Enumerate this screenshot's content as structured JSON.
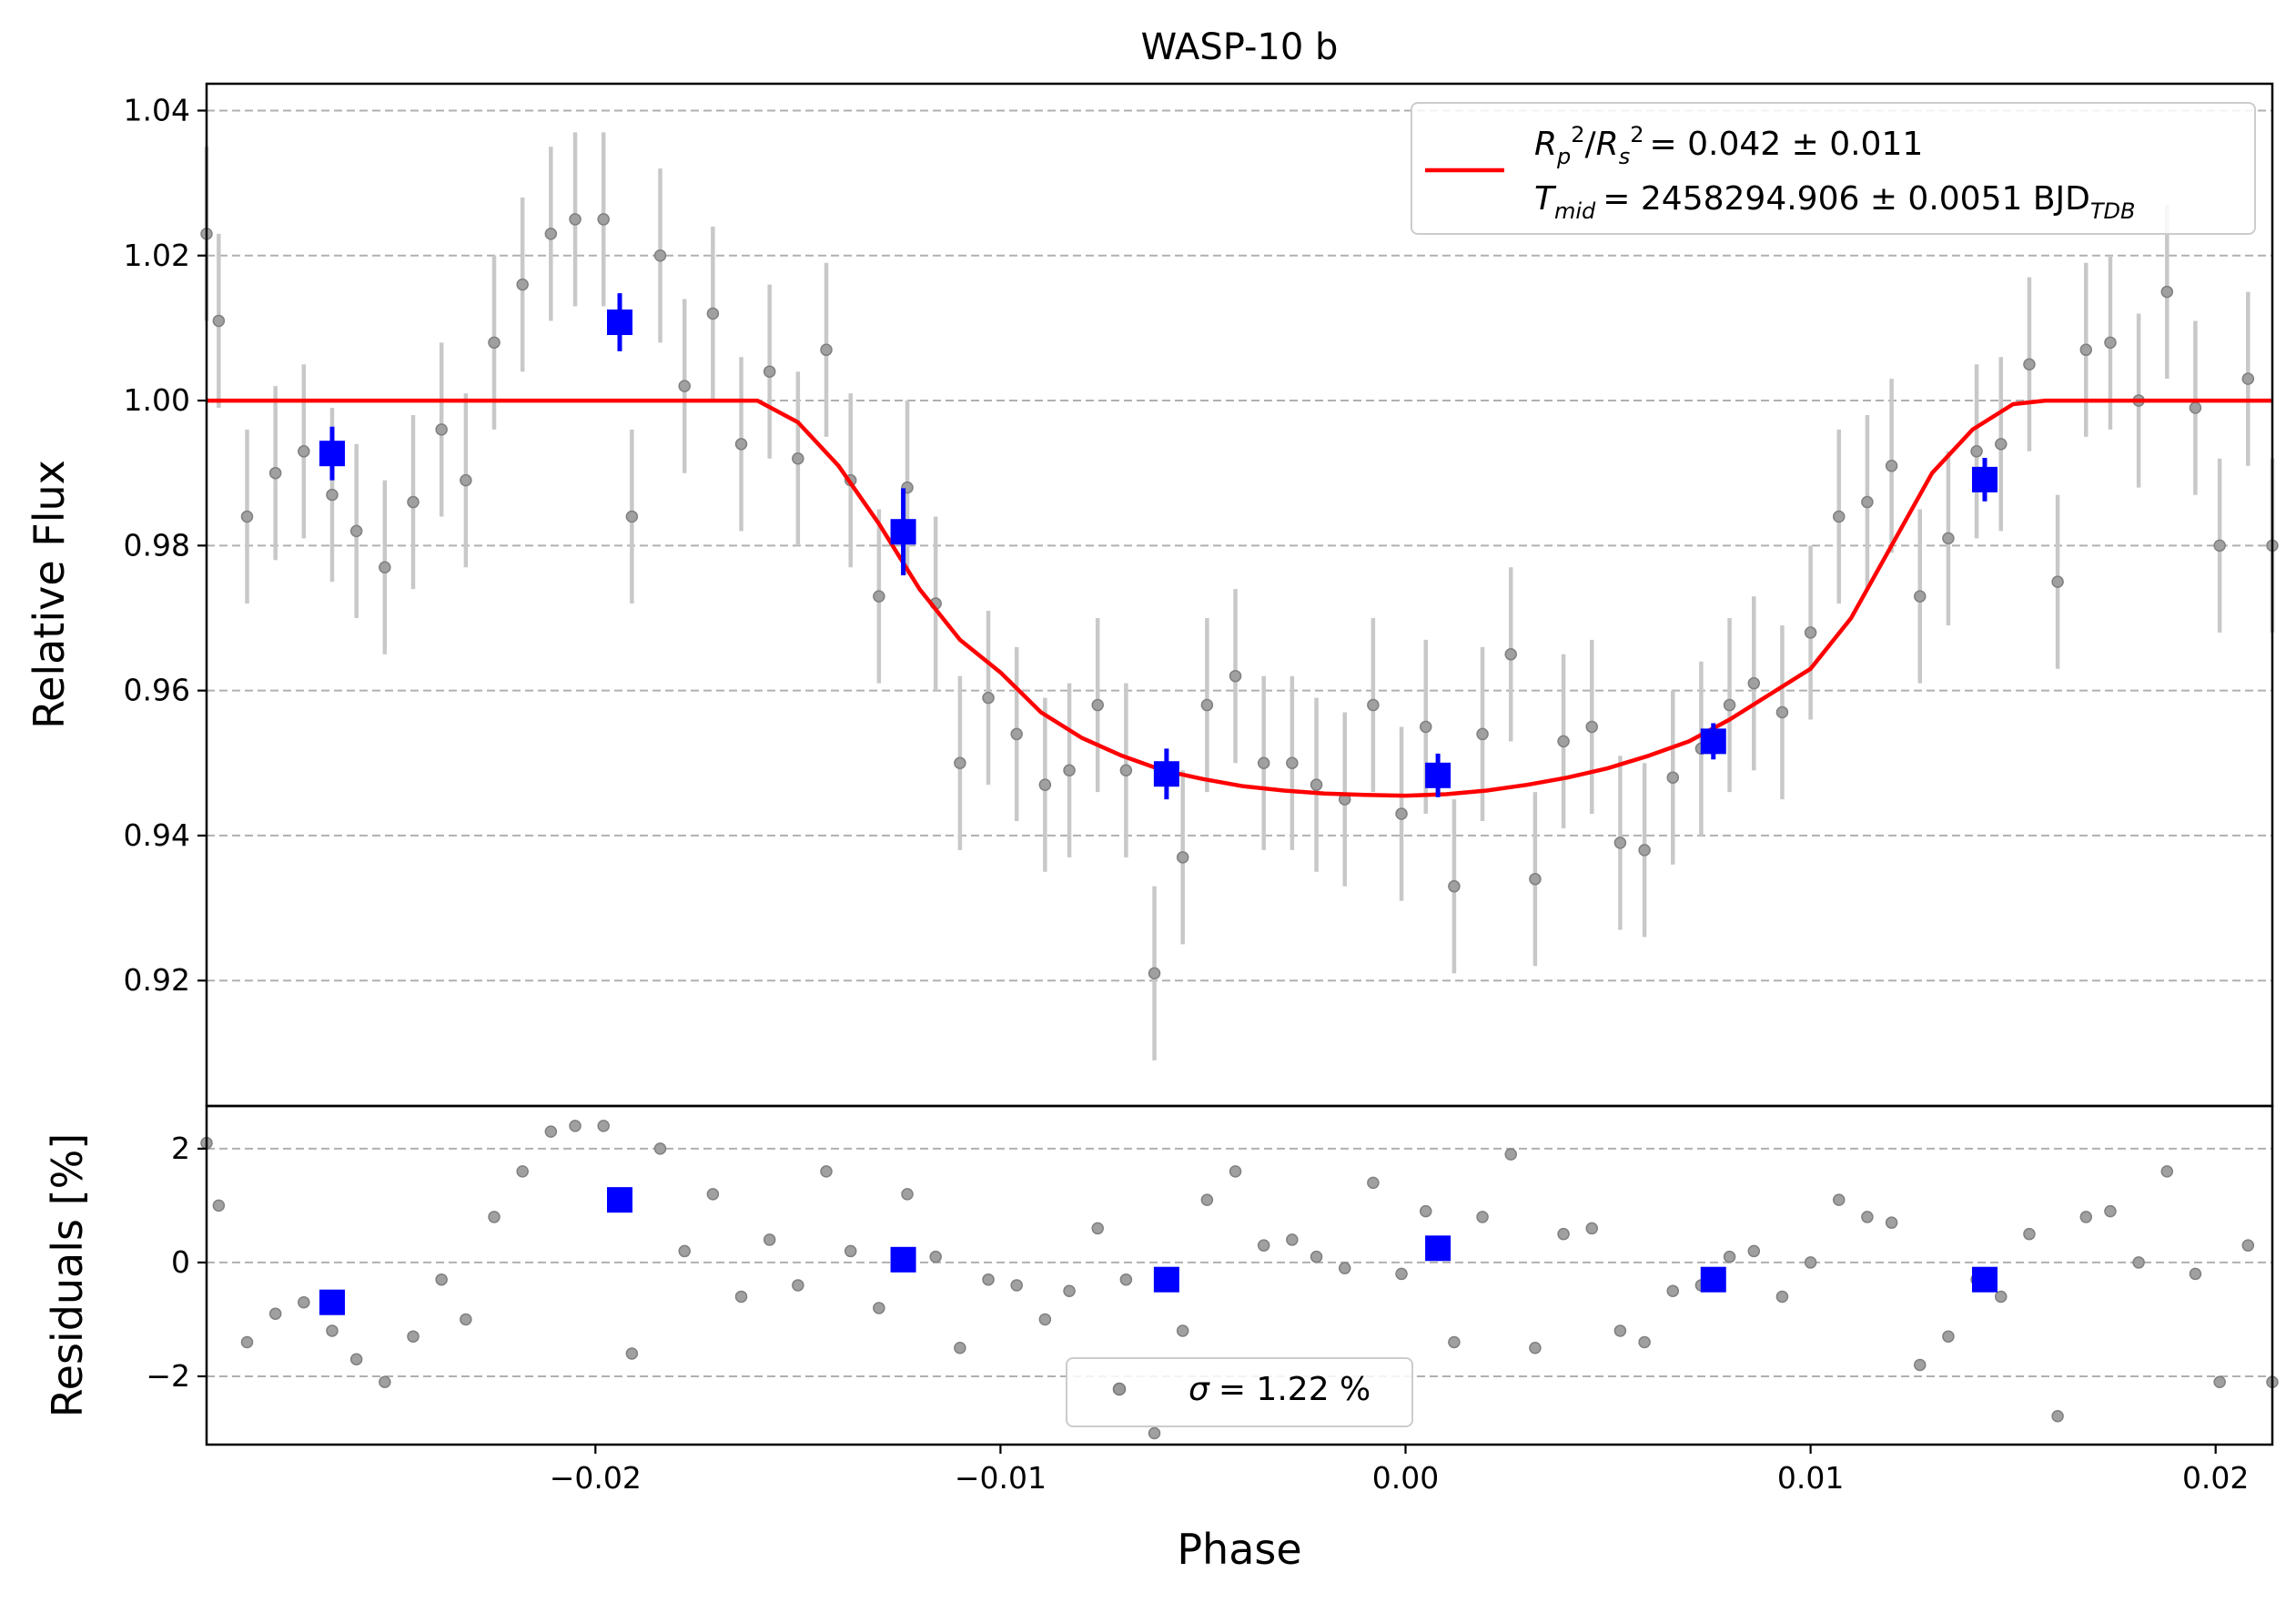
{
  "chart_data": [
    {
      "id": "flux",
      "type": "scatter",
      "title": "WASP-10 b",
      "xlabel": "",
      "ylabel": "Relative Flux",
      "xlim": [
        -0.0296,
        0.0214
      ],
      "ylim": [
        0.9027,
        1.0437
      ],
      "yticks": [
        0.92,
        0.94,
        0.96,
        0.98,
        1.0,
        1.02,
        1.04
      ],
      "ytick_labels": [
        "0.92",
        "0.94",
        "0.96",
        "0.98",
        "1.00",
        "1.02",
        "1.04"
      ],
      "grid": "horizontal-dashed",
      "legend": {
        "position": "top-right",
        "entries": [
          {
            "label_math": "Rp²/Rs²",
            "text": "= 0.042 ± 0.011"
          },
          {
            "label_math": "Tmid",
            "text": "= 2458294.906 ± 0.0051 BJD",
            "subscript": "TDB"
          }
        ]
      },
      "series": [
        {
          "kind": "points",
          "color": "#999999",
          "x": [
            -0.0296,
            -0.0293,
            -0.0286,
            -0.0279,
            -0.0272,
            -0.0265,
            -0.0259,
            -0.0252,
            -0.0245,
            -0.0238,
            -0.0232,
            -0.0225,
            -0.0218,
            -0.0211,
            -0.0205,
            -0.0198,
            -0.0191,
            -0.0184,
            -0.0178,
            -0.0171,
            -0.0164,
            -0.0157,
            -0.015,
            -0.0143,
            -0.0137,
            -0.013,
            -0.0123,
            -0.0116,
            -0.011,
            -0.0103,
            -0.0096,
            -0.0089,
            -0.0083,
            -0.0076,
            -0.0069,
            -0.0062,
            -0.0055,
            -0.0049,
            -0.0042,
            -0.0035,
            -0.0028,
            -0.0022,
            -0.0015,
            -0.0008,
            -0.0001,
            0.0005,
            0.0012,
            0.0019,
            0.0026,
            0.0032,
            0.0039,
            0.0046,
            0.0053,
            0.0059,
            0.0066,
            0.0073,
            0.008,
            0.0086,
            0.0093,
            0.01,
            0.0107,
            0.0114,
            0.012,
            0.0127,
            0.0134,
            0.0141,
            0.0147,
            0.0154,
            0.0161,
            0.0168,
            0.0174,
            0.0181,
            0.0188,
            0.0195,
            0.0201,
            0.0208,
            0.0214
          ],
          "y": [
            1.023,
            1.011,
            0.984,
            0.99,
            0.993,
            0.987,
            0.982,
            0.977,
            0.986,
            0.996,
            0.989,
            1.008,
            1.016,
            1.023,
            1.025,
            1.025,
            0.984,
            1.02,
            1.002,
            1.012,
            0.994,
            1.004,
            0.992,
            1.007,
            0.989,
            0.973,
            0.988,
            0.972,
            0.95,
            0.959,
            0.954,
            0.947,
            0.949,
            0.958,
            0.949,
            0.921,
            0.937,
            0.958,
            0.962,
            0.95,
            0.95,
            0.947,
            0.945,
            0.958,
            0.943,
            0.955,
            0.933,
            0.954,
            0.965,
            0.934,
            0.953,
            0.955,
            0.939,
            0.938,
            0.948,
            0.952,
            0.958,
            0.961,
            0.957,
            0.968,
            0.984,
            0.986,
            0.991,
            0.973,
            0.981,
            0.993,
            0.994,
            1.005,
            0.975,
            1.007,
            1.008,
            1.0,
            1.015,
            0.999,
            0.98,
            1.003,
            0.98
          ],
          "yerr": 0.012
        },
        {
          "kind": "binned",
          "color": "#0000ff",
          "x": [
            -0.0265,
            -0.0194,
            -0.0124,
            -0.0059,
            0.0008,
            0.0076,
            0.0143
          ],
          "y": [
            0.9927,
            1.0108,
            0.9819,
            0.9485,
            0.9483,
            0.953,
            0.9891
          ],
          "yerr": [
            0.0037,
            0.004,
            0.006,
            0.0035,
            0.003,
            0.0025,
            0.003
          ]
        },
        {
          "kind": "model",
          "color": "#ff0000",
          "x": [
            -0.0296,
            -0.016,
            -0.015,
            -0.014,
            -0.013,
            -0.012,
            -0.011,
            -0.01,
            -0.009,
            -0.008,
            -0.007,
            -0.006,
            -0.005,
            -0.004,
            -0.003,
            -0.002,
            -0.001,
            0.0,
            0.001,
            0.002,
            0.003,
            0.004,
            0.005,
            0.006,
            0.007,
            0.008,
            0.009,
            0.01,
            0.011,
            0.012,
            0.013,
            0.014,
            0.015,
            0.0158,
            0.0214
          ],
          "y": [
            1.0,
            1.0,
            0.997,
            0.991,
            0.983,
            0.974,
            0.967,
            0.9625,
            0.957,
            0.9535,
            0.951,
            0.949,
            0.9478,
            0.9468,
            0.9462,
            0.9458,
            0.9456,
            0.9455,
            0.9457,
            0.9462,
            0.947,
            0.948,
            0.9493,
            0.951,
            0.953,
            0.956,
            0.9595,
            0.963,
            0.97,
            0.98,
            0.99,
            0.996,
            0.9995,
            1.0,
            1.0
          ]
        }
      ]
    },
    {
      "id": "residuals",
      "type": "scatter",
      "title": "",
      "xlabel": "Phase",
      "ylabel": "Residuals [%]",
      "xlim": [
        -0.0296,
        0.0214
      ],
      "ylim": [
        -3.2,
        2.75
      ],
      "xticks": [
        -0.02,
        -0.01,
        0.0,
        0.01,
        0.02
      ],
      "xtick_labels": [
        "−0.02",
        "−0.01",
        "0.00",
        "0.01",
        "0.02"
      ],
      "yticks": [
        -2,
        0,
        2
      ],
      "ytick_labels": [
        "−2",
        "0",
        "2"
      ],
      "grid": "horizontal-dashed",
      "legend": {
        "position": "bottom-center",
        "entries": [
          {
            "label_math": "σ",
            "text": "= 1.22 %"
          }
        ]
      },
      "series": [
        {
          "kind": "points",
          "color": "#999999",
          "x": [
            -0.0296,
            -0.0293,
            -0.0286,
            -0.0279,
            -0.0272,
            -0.0265,
            -0.0259,
            -0.0252,
            -0.0245,
            -0.0238,
            -0.0232,
            -0.0225,
            -0.0218,
            -0.0211,
            -0.0205,
            -0.0198,
            -0.0191,
            -0.0184,
            -0.0178,
            -0.0171,
            -0.0164,
            -0.0157,
            -0.015,
            -0.0143,
            -0.0137,
            -0.013,
            -0.0123,
            -0.0116,
            -0.011,
            -0.0103,
            -0.0096,
            -0.0089,
            -0.0083,
            -0.0076,
            -0.0069,
            -0.0062,
            -0.0055,
            -0.0049,
            -0.0042,
            -0.0035,
            -0.0028,
            -0.0022,
            -0.0015,
            -0.0008,
            -0.0001,
            0.0005,
            0.0012,
            0.0019,
            0.0026,
            0.0032,
            0.0039,
            0.0046,
            0.0053,
            0.0059,
            0.0066,
            0.0073,
            0.008,
            0.0086,
            0.0093,
            0.01,
            0.0107,
            0.0114,
            0.012,
            0.0127,
            0.0134,
            0.0141,
            0.0147,
            0.0154,
            0.0161,
            0.0168,
            0.0174,
            0.0181,
            0.0188,
            0.0195,
            0.0201,
            0.0208,
            0.0214
          ],
          "y": [
            2.1,
            1.0,
            -1.4,
            -0.9,
            -0.7,
            -1.2,
            -1.7,
            -2.1,
            -1.3,
            -0.3,
            -1.0,
            0.8,
            1.6,
            2.3,
            2.4,
            2.4,
            -1.6,
            2.0,
            0.2,
            1.2,
            -0.6,
            0.4,
            -0.4,
            1.6,
            0.2,
            -0.8,
            1.2,
            0.1,
            -1.5,
            -0.3,
            -0.4,
            -1.0,
            -0.5,
            0.6,
            -0.3,
            -3.0,
            -1.2,
            1.1,
            1.6,
            0.3,
            0.4,
            0.1,
            -0.1,
            1.4,
            -0.2,
            0.9,
            -1.4,
            0.8,
            1.9,
            -1.5,
            0.5,
            0.6,
            -1.2,
            -1.4,
            -0.5,
            -0.4,
            0.1,
            0.2,
            -0.6,
            0.0,
            1.1,
            0.8,
            0.7,
            -1.8,
            -1.3,
            -0.3,
            -0.6,
            0.5,
            -2.7,
            0.8,
            0.9,
            0.0,
            1.6,
            -0.2,
            -2.1,
            0.3,
            -2.1
          ]
        },
        {
          "kind": "binned",
          "color": "#0000ff",
          "x": [
            -0.0265,
            -0.0194,
            -0.0124,
            -0.0059,
            0.0008,
            0.0076,
            0.0143
          ],
          "y": [
            -0.7,
            1.1,
            0.05,
            -0.3,
            0.25,
            -0.3,
            -0.3
          ]
        }
      ]
    }
  ]
}
